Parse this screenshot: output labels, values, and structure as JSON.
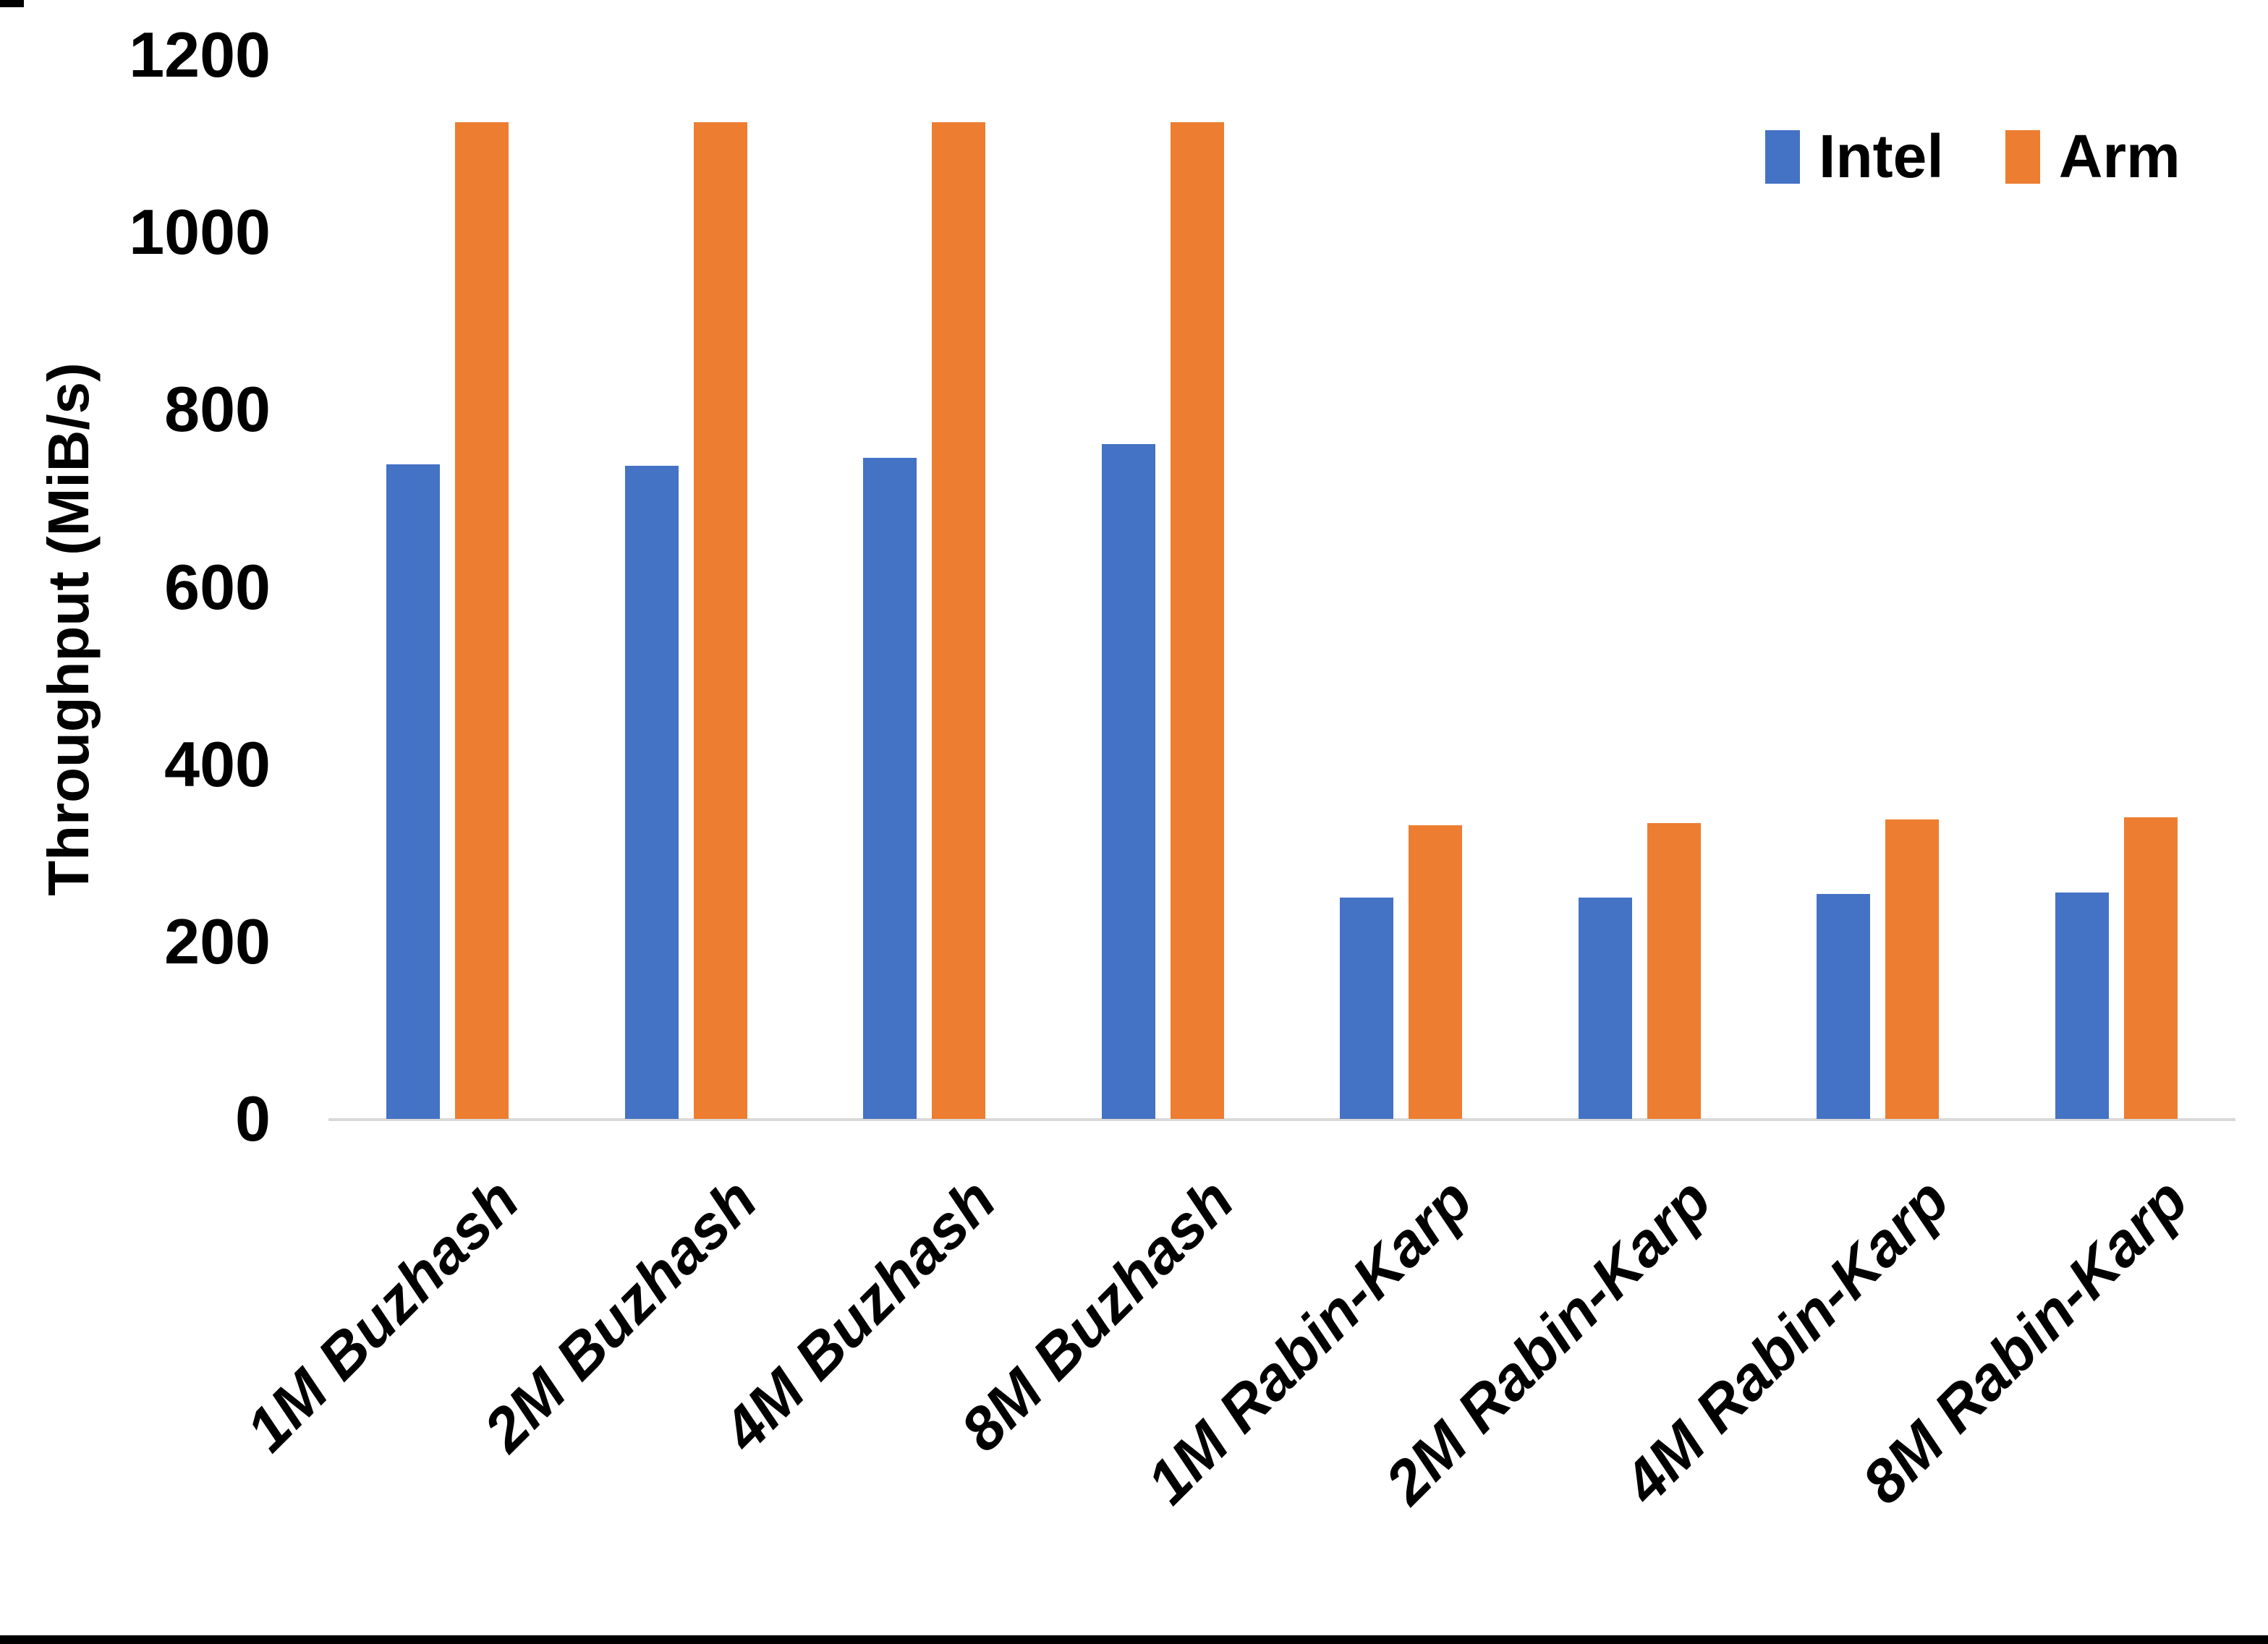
{
  "chart_data": {
    "type": "bar",
    "title": "",
    "xlabel": "",
    "ylabel": "Throughput (MiB/s)",
    "ylim": [
      0,
      1200
    ],
    "yticks": [
      0,
      200,
      400,
      600,
      800,
      1000,
      1200
    ],
    "grid": false,
    "legend_position": "top-right",
    "categories": [
      "1M Buzhash",
      "2M Buzhash",
      "4M Buzhash",
      "8M Buzhash",
      "1M Rabin-Karp",
      "2M Rabin-Karp",
      "4M Rabin-Karp",
      "8M Rabin-Karp"
    ],
    "series": [
      {
        "name": "Intel",
        "color": "#4472C4",
        "values": [
          738,
          737,
          746,
          761,
          250,
          250,
          254,
          255
        ]
      },
      {
        "name": "Arm",
        "color": "#ED7D31",
        "values": [
          1124,
          1124,
          1124,
          1124,
          331,
          334,
          338,
          340
        ]
      }
    ],
    "axis_line_color": "#D9D9D9",
    "text_color": "#000000"
  }
}
